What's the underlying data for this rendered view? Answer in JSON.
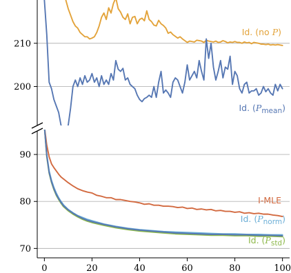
{
  "chart_data": {
    "type": "line",
    "broken_y_axis": true,
    "grid": "horizontal",
    "x_ticks": [
      "0",
      "20",
      "40",
      "60",
      "80",
      "100"
    ],
    "xlim": [
      -3,
      103
    ],
    "top_panel": {
      "ylim": [
        191,
        220
      ],
      "y_ticks": [
        "200",
        "210"
      ],
      "series": [
        {
          "name": "Id. (no P)",
          "color": "#e3a33a",
          "x": [
            9,
            10,
            11,
            12,
            13,
            14,
            15,
            16,
            17,
            18,
            19,
            20,
            21,
            22,
            23,
            24,
            25,
            26,
            27,
            28,
            29,
            30,
            31,
            32,
            33,
            34,
            35,
            36,
            37,
            38,
            39,
            40,
            41,
            42,
            43,
            44,
            45,
            46,
            47,
            48,
            49,
            50,
            51,
            52,
            53,
            54,
            55,
            56,
            57,
            58,
            59,
            60,
            61,
            62,
            63,
            64,
            65,
            66,
            67,
            68,
            69,
            70,
            71,
            72,
            73,
            74,
            75,
            76,
            77,
            78,
            79,
            80,
            81,
            82,
            83,
            84,
            85,
            86,
            87,
            88,
            89,
            90,
            91,
            92,
            93,
            94,
            95,
            96,
            97,
            98,
            99,
            100
          ],
          "values": [
            220,
            218,
            216.5,
            215,
            214,
            213.5,
            212.5,
            212,
            211.5,
            211.5,
            211,
            211.2,
            211.5,
            212.5,
            214,
            216,
            217,
            215.5,
            218.2,
            217,
            219.2,
            220.5,
            218,
            217.2,
            216,
            215.5,
            216.8,
            214.5,
            216,
            216.2,
            214.5,
            215.5,
            215.8,
            215.2,
            217.5,
            215.5,
            215,
            214.2,
            214,
            215.3,
            214.5,
            214.1,
            213.5,
            212.3,
            212.6,
            212,
            211.6,
            211.2,
            211.5,
            211,
            210.6,
            210.2,
            210.5,
            210.4,
            210.3,
            210.7,
            210.6,
            210.5,
            210.2,
            210.7,
            210.5,
            210.4,
            210.3,
            210.5,
            210.2,
            210.3,
            210.6,
            210.4,
            210.1,
            210.3,
            210.2,
            210.4,
            210.2,
            210.2,
            210,
            210.3,
            210.1,
            210.2,
            209.9,
            210.2,
            210.1,
            210,
            209.8,
            209.8,
            209.7,
            209.8,
            209.6,
            209.7,
            209.6,
            209.7,
            209.6,
            209.5
          ]
        },
        {
          "name": "Id. (P_mean)",
          "color": "#5677b3",
          "x": [
            0,
            1,
            2,
            3,
            4,
            5,
            6,
            7,
            8,
            9,
            10,
            11,
            12,
            13,
            14,
            15,
            16,
            17,
            18,
            19,
            20,
            21,
            22,
            23,
            24,
            25,
            26,
            27,
            28,
            29,
            30,
            31,
            32,
            33,
            34,
            35,
            36,
            37,
            38,
            39,
            40,
            41,
            42,
            43,
            44,
            45,
            46,
            47,
            48,
            49,
            50,
            51,
            52,
            53,
            54,
            55,
            56,
            57,
            58,
            59,
            60,
            61,
            62,
            63,
            64,
            65,
            66,
            67,
            68,
            69,
            70,
            71,
            72,
            73,
            74,
            75,
            76,
            77,
            78,
            79,
            80,
            81,
            82,
            83,
            84,
            85,
            86,
            87,
            88,
            89,
            90,
            91,
            92,
            93,
            94,
            95,
            96,
            97,
            98,
            99,
            100
          ],
          "values": [
            220,
            212,
            201,
            199.5,
            197,
            195.5,
            194,
            191,
            190.5,
            190.5,
            191,
            195,
            200,
            201.5,
            200,
            202,
            200.5,
            202.5,
            201,
            201.5,
            203,
            201,
            202,
            200,
            202.5,
            200.5,
            201.5,
            200.5,
            203,
            201.5,
            206,
            204,
            203.5,
            204.2,
            201.5,
            202,
            200.5,
            200,
            199.5,
            198,
            197,
            196.5,
            197.2,
            197.5,
            198,
            197.5,
            200,
            197.5,
            201,
            203.5,
            198.5,
            199.2,
            198.5,
            197.5,
            201,
            202,
            201.5,
            200,
            198.5,
            201,
            205,
            201.5,
            202.5,
            203.5,
            202,
            206,
            203.5,
            201.5,
            211,
            206.5,
            210,
            204.5,
            201.5,
            203.5,
            206,
            202,
            204.5,
            204,
            207,
            200.5,
            203.5,
            202.5,
            199.5,
            198.5,
            200.5,
            201,
            198.5,
            199,
            199,
            199.5,
            198,
            198.5,
            200,
            198.8,
            199.5,
            198.5,
            198,
            200.5,
            199,
            200.5,
            199.5
          ]
        }
      ],
      "annotations": [
        {
          "text": "Id. (no P)",
          "color": "#e3a33a"
        },
        {
          "text": "Id. (P",
          "sub": "mean",
          "color": "#5677b3"
        }
      ]
    },
    "bottom_panel": {
      "ylim": [
        68,
        95
      ],
      "y_ticks": [
        "70",
        "80",
        "90"
      ],
      "series": [
        {
          "name": "I-MLE",
          "color": "#d2693f",
          "x": [
            0,
            1,
            2,
            3,
            4,
            5,
            6,
            7,
            8,
            9,
            10,
            12,
            14,
            16,
            18,
            20,
            22,
            24,
            26,
            28,
            30,
            32,
            34,
            36,
            38,
            40,
            42,
            44,
            46,
            48,
            50,
            52,
            54,
            56,
            58,
            60,
            62,
            64,
            66,
            68,
            70,
            72,
            74,
            76,
            78,
            80,
            82,
            84,
            86,
            88,
            90,
            92,
            94,
            96,
            98,
            100
          ],
          "values": [
            96,
            92,
            89.5,
            88,
            87.2,
            86.5,
            85.8,
            85.2,
            84.8,
            84.4,
            84,
            83.3,
            82.7,
            82.3,
            82,
            81.8,
            81.3,
            81.1,
            80.8,
            80.8,
            80.4,
            80.4,
            80.2,
            80,
            79.9,
            79.7,
            79.4,
            79.5,
            79.2,
            79.2,
            79,
            79,
            78.9,
            78.7,
            78.8,
            78.5,
            78.6,
            78.3,
            78.4,
            78.2,
            78.3,
            78,
            78.1,
            77.9,
            77.9,
            77.7,
            77.8,
            77.5,
            77.6,
            77.4,
            77.5,
            77.3,
            77.3,
            77.1,
            77,
            76.8
          ]
        },
        {
          "name": "Id. (P_norm)",
          "color": "#6baed6",
          "x": [
            0,
            1,
            2,
            3,
            4,
            5,
            6,
            7,
            8,
            10,
            12,
            14,
            16,
            18,
            20,
            25,
            30,
            35,
            40,
            45,
            50,
            55,
            60,
            65,
            70,
            75,
            80,
            85,
            90,
            95,
            100
          ],
          "values": [
            96,
            90,
            86.5,
            84.5,
            83,
            81.8,
            80.8,
            80,
            79.3,
            78.3,
            77.6,
            77,
            76.6,
            76.2,
            75.9,
            75.2,
            74.7,
            74.3,
            74,
            73.8,
            73.6,
            73.5,
            73.4,
            73.3,
            73.2,
            73.1,
            73.1,
            73,
            73,
            72.9,
            72.9
          ]
        },
        {
          "name": "Id. (P_std)",
          "color": "#8db84a",
          "x": [
            0,
            1,
            2,
            3,
            4,
            5,
            6,
            7,
            8,
            10,
            12,
            14,
            16,
            18,
            20,
            25,
            30,
            35,
            40,
            45,
            50,
            55,
            60,
            65,
            70,
            75,
            80,
            85,
            90,
            95,
            100
          ],
          "values": [
            96,
            89.5,
            86,
            84,
            82.5,
            81.3,
            80.4,
            79.6,
            78.9,
            78,
            77.3,
            76.7,
            76.2,
            75.8,
            75.5,
            74.9,
            74.4,
            74,
            73.7,
            73.5,
            73.3,
            73.1,
            73,
            72.9,
            72.8,
            72.8,
            72.7,
            72.7,
            72.6,
            72.6,
            72.5
          ]
        },
        {
          "name": "Id. (P_mean)",
          "color": "#5677b3",
          "x": [
            0,
            1,
            2,
            3,
            4,
            5,
            6,
            7,
            8,
            10,
            12,
            14,
            16,
            18,
            20,
            25,
            30,
            35,
            40,
            45,
            50,
            55,
            60,
            65,
            70,
            75,
            80,
            85,
            90,
            95,
            100
          ],
          "values": [
            96,
            89.8,
            86.2,
            84.2,
            82.7,
            81.5,
            80.6,
            79.8,
            79.1,
            78.2,
            77.5,
            76.9,
            76.4,
            76,
            75.7,
            75.1,
            74.6,
            74.2,
            73.9,
            73.7,
            73.5,
            73.3,
            73.2,
            73.1,
            73,
            73,
            72.9,
            72.9,
            72.8,
            72.8,
            72.7
          ]
        }
      ],
      "annotations": [
        {
          "text": "I-MLE",
          "color": "#d2693f"
        },
        {
          "text": "Id. (P",
          "sub": "norm",
          "color": "#6baed6"
        },
        {
          "text": "Id. (P",
          "sub": "std",
          "color": "#8db84a"
        }
      ]
    }
  }
}
